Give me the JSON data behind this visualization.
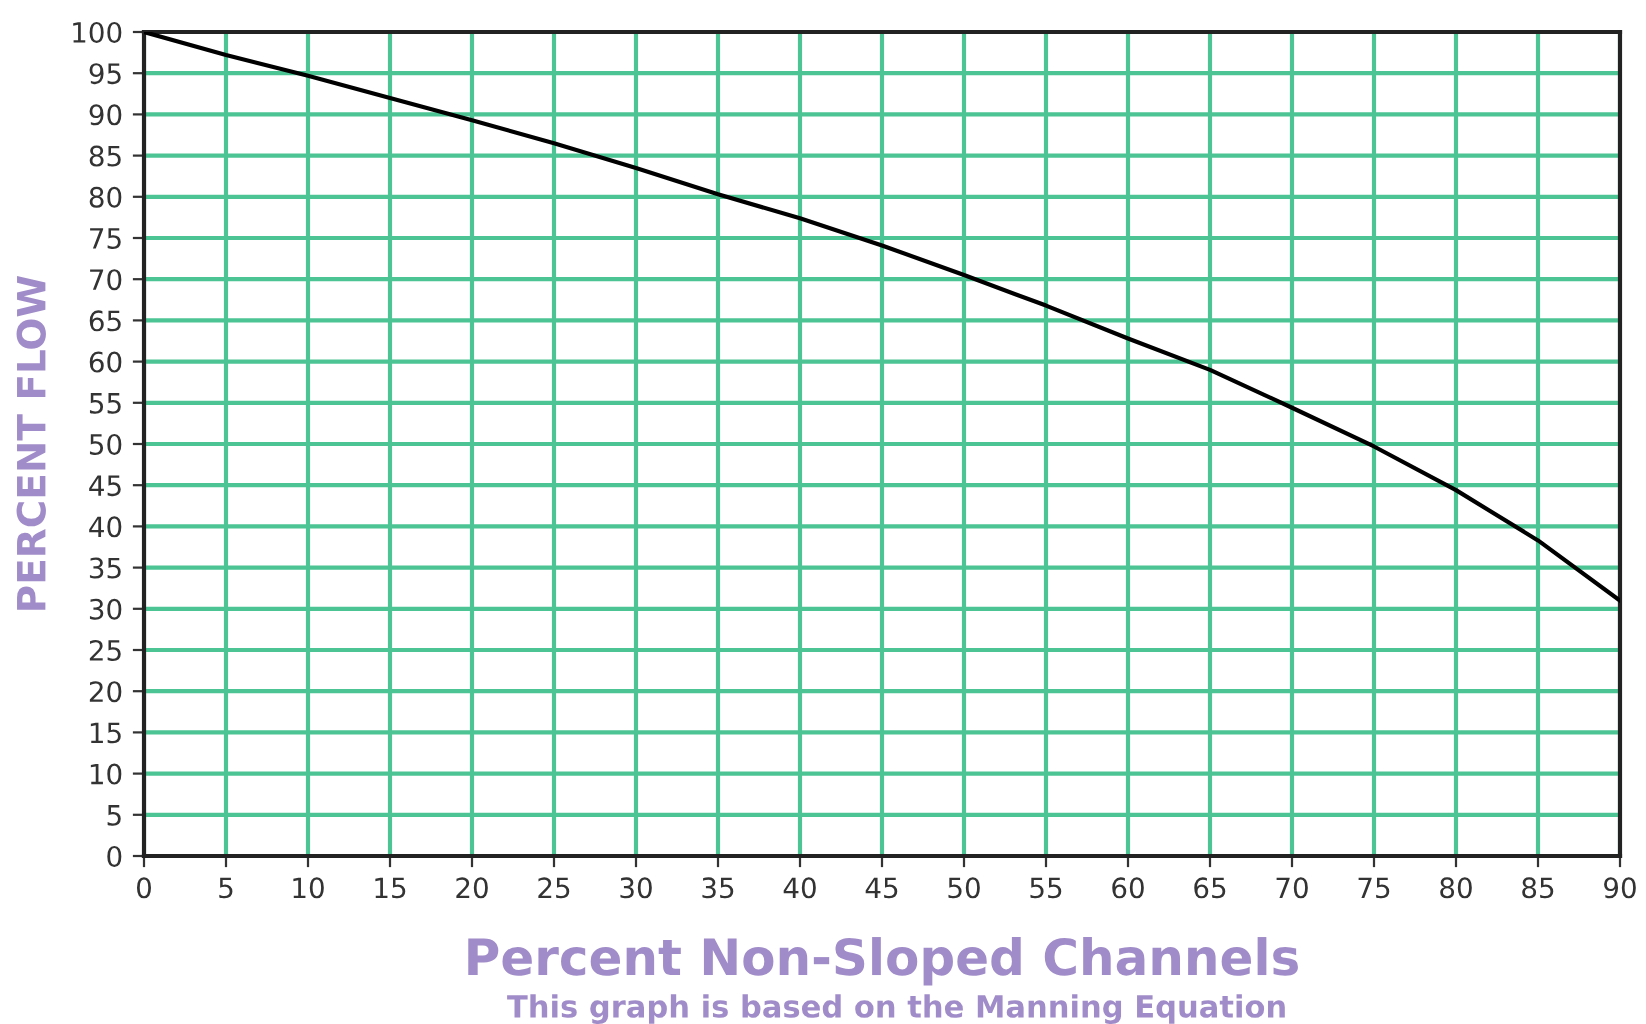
{
  "chart_data": {
    "type": "line",
    "xlabel": "Percent Non-Sloped Channels",
    "ylabel": "PERCENT FLOW",
    "annotations": [
      "This graph is based on the Manning Equation"
    ],
    "x": [
      0,
      5,
      10,
      15,
      20,
      25,
      30,
      35,
      40,
      45,
      50,
      55,
      60,
      65,
      70,
      75,
      80,
      85,
      90
    ],
    "series": [
      {
        "color": "#000000",
        "values": [
          100,
          97.2,
          94.7,
          92,
          89.3,
          86.5,
          83.5,
          80.3,
          77.4,
          74.1,
          70.5,
          66.8,
          62.8,
          59,
          54.4,
          49.7,
          44.4,
          38.3,
          31
        ]
      }
    ],
    "xlim": [
      0,
      90
    ],
    "ylim": [
      0,
      100
    ],
    "xticks": [
      0,
      5,
      10,
      15,
      20,
      25,
      30,
      35,
      40,
      45,
      50,
      55,
      60,
      65,
      70,
      75,
      80,
      85,
      90
    ],
    "yticks": [
      0,
      5,
      10,
      15,
      20,
      25,
      30,
      35,
      40,
      45,
      50,
      55,
      60,
      65,
      70,
      75,
      80,
      85,
      90,
      95,
      100
    ],
    "grid": true,
    "marker": "none",
    "line_style": "solid"
  }
}
